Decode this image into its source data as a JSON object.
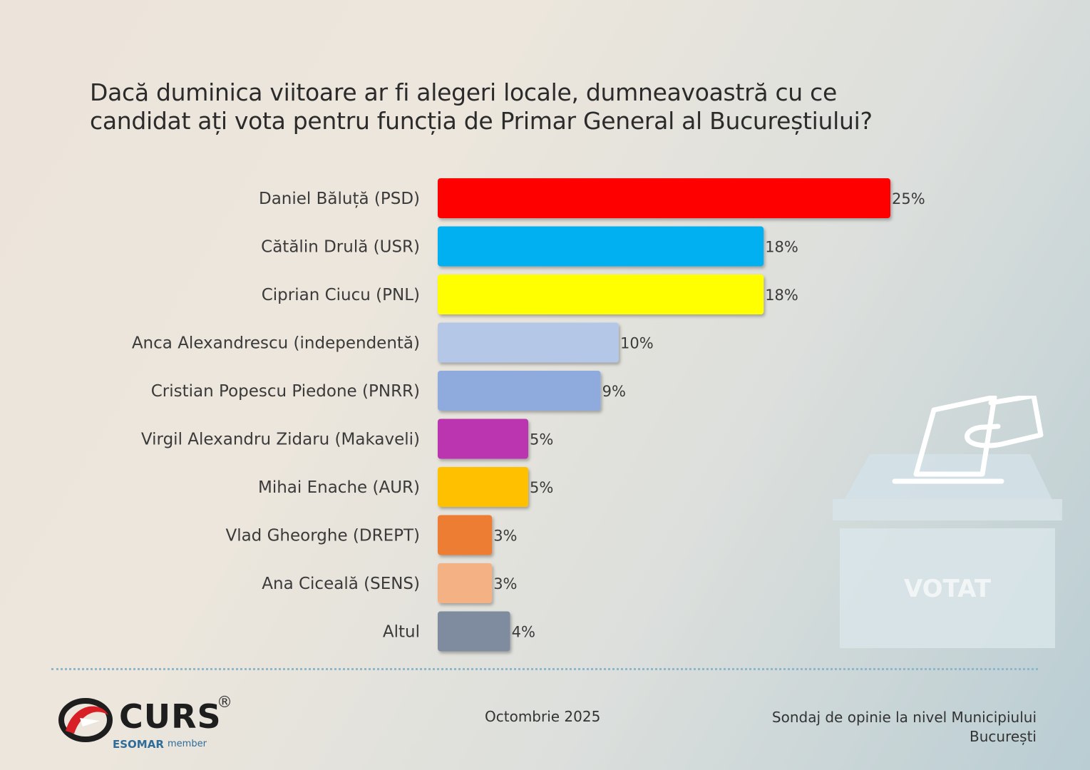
{
  "title_lines": [
    "Dacă duminica viitoare ar fi alegeri locale, dumneavoastră cu ce",
    "candidat ați vota pentru funcția de Primar General al Bucureștiului?"
  ],
  "chart_data": {
    "type": "bar",
    "orientation": "horizontal",
    "categories": [
      "Daniel Băluță (PSD)",
      "Cătălin Drulă (USR)",
      "Ciprian Ciucu (PNL)",
      "Anca Alexandrescu (independentă)",
      "Cristian Popescu Piedone (PNRR)",
      "Virgil Alexandru Zidaru (Makaveli)",
      "Mihai Enache (AUR)",
      "Vlad Gheorghe (DREPT)",
      "Ana Ciceală (SENS)",
      "Altul"
    ],
    "values": [
      25,
      18,
      18,
      10,
      9,
      5,
      5,
      3,
      3,
      4
    ],
    "value_labels": [
      "25%",
      "18%",
      "18%",
      "10%",
      "9%",
      "5%",
      "5%",
      "3%",
      "3%",
      "4%"
    ],
    "colors": [
      "#ff0000",
      "#00b0f0",
      "#ffff00",
      "#b4c7e7",
      "#8faadc",
      "#bc36b0",
      "#ffc000",
      "#ed7d31",
      "#f4b183",
      "#7f8c9f"
    ],
    "unit": "%",
    "grid": false
  },
  "ballot_box": {
    "label": "VOTAT",
    "icon": "ballot-box-icon"
  },
  "footer": {
    "date": "Octombrie 2025",
    "source_lines": [
      "Sondaj de opinie la nivel Municipiului",
      "București"
    ],
    "logo": {
      "name": "CURS",
      "registered": "®",
      "esomar": "ESOMAR",
      "member": "member"
    }
  }
}
